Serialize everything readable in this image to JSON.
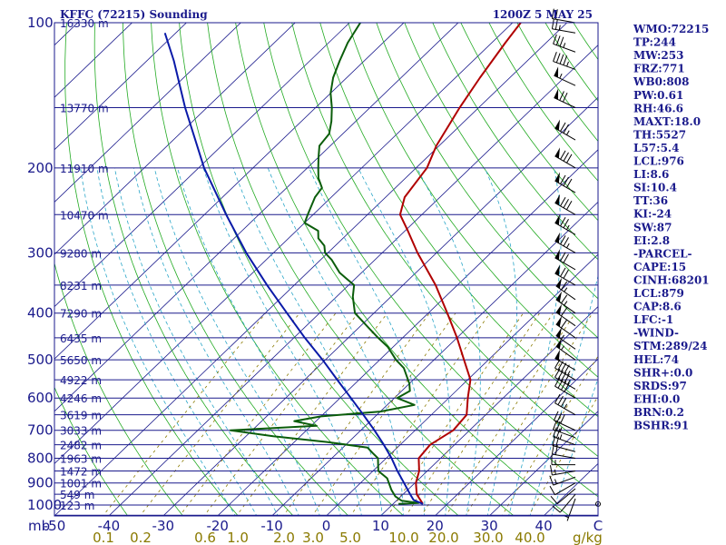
{
  "header": {
    "station_title": "KFFC (72215) Sounding",
    "valid_time": "1200Z  5 MAY 25"
  },
  "chart_data": {
    "type": "line",
    "title": "KFFC (72215) Sounding",
    "subtitle": "1200Z  5 MAY 25",
    "xlim": [
      -50,
      50
    ],
    "ylim": [
      1050,
      100
    ],
    "x_unit_label": "C",
    "pressure_levels": [
      100,
      200,
      300,
      400,
      500,
      600,
      700,
      800,
      900,
      1000
    ],
    "pressure_axis_corner_label": "mb",
    "temperature_ticks": [
      "-50",
      "-40",
      "-30",
      "-20",
      "-10",
      "0",
      "10",
      "20",
      "30",
      "40"
    ],
    "mixing_ratio_labels": [
      "0.1",
      "0.2",
      "0.6",
      "1.0",
      "2.0",
      "3.0",
      "5.0",
      "10.0",
      "20.0",
      "30.0",
      "40.0"
    ],
    "mixing_ratio_unit": "g/kg",
    "height_labels": [
      {
        "p": 100,
        "text": "16330 m"
      },
      {
        "p": 150,
        "text": "13770 m"
      },
      {
        "p": 200,
        "text": "11910 m"
      },
      {
        "p": 250,
        "text": "10470 m"
      },
      {
        "p": 300,
        "text": "9280 m"
      },
      {
        "p": 350,
        "text": "8231 m"
      },
      {
        "p": 400,
        "text": "7290 m"
      },
      {
        "p": 450,
        "text": "6435 m"
      },
      {
        "p": 500,
        "text": "5650 m"
      },
      {
        "p": 550,
        "text": "4922 m"
      },
      {
        "p": 600,
        "text": "4246 m"
      },
      {
        "p": 650,
        "text": "3619 m"
      },
      {
        "p": 700,
        "text": "3033 m"
      },
      {
        "p": 750,
        "text": "2482 m"
      },
      {
        "p": 800,
        "text": "1963 m"
      },
      {
        "p": 850,
        "text": "1472 m"
      },
      {
        "p": 900,
        "text": "1001 m"
      },
      {
        "p": 950,
        "text": "549 m"
      },
      {
        "p": 1000,
        "text": "123 m"
      }
    ],
    "series": [
      {
        "key": "temperature",
        "color": "#b00000",
        "points": [
          [
            995,
            15.5
          ],
          [
            950,
            12.5
          ],
          [
            900,
            10.2
          ],
          [
            850,
            8.5
          ],
          [
            800,
            6.0
          ],
          [
            750,
            5.5
          ],
          [
            700,
            7.0
          ],
          [
            650,
            6.5
          ],
          [
            600,
            3.5
          ],
          [
            550,
            0.5
          ],
          [
            500,
            -4.5
          ],
          [
            450,
            -10.0
          ],
          [
            400,
            -16.5
          ],
          [
            350,
            -24.0
          ],
          [
            300,
            -33.5
          ],
          [
            270,
            -39.5
          ],
          [
            250,
            -44.0
          ],
          [
            230,
            -46.5
          ],
          [
            200,
            -48.0
          ],
          [
            180,
            -50.5
          ],
          [
            150,
            -53.5
          ],
          [
            130,
            -55.5
          ],
          [
            110,
            -57.5
          ],
          [
            100,
            -58.5
          ]
        ]
      },
      {
        "key": "dewpoint",
        "color": "#0b5d0b",
        "points": [
          [
            995,
            11.0
          ],
          [
            990,
            14.5
          ],
          [
            980,
            11.0
          ],
          [
            960,
            9.0
          ],
          [
            930,
            7.0
          ],
          [
            880,
            4.0
          ],
          [
            850,
            1.0
          ],
          [
            830,
            0.0
          ],
          [
            800,
            -1.5
          ],
          [
            780,
            -3.5
          ],
          [
            760,
            -5.5
          ],
          [
            740,
            -14.0
          ],
          [
            720,
            -25.0
          ],
          [
            700,
            -34.0
          ],
          [
            685,
            -19.0
          ],
          [
            670,
            -24.0
          ],
          [
            655,
            -20.0
          ],
          [
            640,
            -10.0
          ],
          [
            620,
            -5.0
          ],
          [
            600,
            -9.5
          ],
          [
            580,
            -8.5
          ],
          [
            560,
            -10.0
          ],
          [
            520,
            -14.0
          ],
          [
            500,
            -17.0
          ],
          [
            470,
            -21.0
          ],
          [
            450,
            -24.5
          ],
          [
            430,
            -28.0
          ],
          [
            400,
            -33.5
          ],
          [
            370,
            -37.0
          ],
          [
            350,
            -39.0
          ],
          [
            330,
            -44.0
          ],
          [
            310,
            -48.0
          ],
          [
            300,
            -50.5
          ],
          [
            290,
            -52.0
          ],
          [
            280,
            -54.5
          ],
          [
            270,
            -56.0
          ],
          [
            260,
            -60.0
          ],
          [
            250,
            -61.0
          ],
          [
            230,
            -63.0
          ],
          [
            220,
            -63.5
          ],
          [
            210,
            -66.0
          ],
          [
            200,
            -68.0
          ],
          [
            190,
            -70.0
          ],
          [
            180,
            -72.0
          ],
          [
            170,
            -72.5
          ],
          [
            160,
            -74.5
          ],
          [
            150,
            -77.0
          ],
          [
            140,
            -80.0
          ],
          [
            130,
            -82.5
          ],
          [
            120,
            -84.5
          ],
          [
            110,
            -86.5
          ],
          [
            100,
            -88.0
          ]
        ]
      },
      {
        "key": "parcel",
        "color": "#0a1aa8",
        "points": [
          [
            995,
            15.5
          ],
          [
            976,
            13.0
          ],
          [
            950,
            11.3
          ],
          [
            900,
            8.0
          ],
          [
            850,
            4.5
          ],
          [
            800,
            1.0
          ],
          [
            750,
            -3.0
          ],
          [
            700,
            -7.5
          ],
          [
            650,
            -12.5
          ],
          [
            600,
            -18.0
          ],
          [
            550,
            -24.0
          ],
          [
            500,
            -30.5
          ],
          [
            450,
            -38.0
          ],
          [
            400,
            -46.0
          ],
          [
            350,
            -55.0
          ],
          [
            300,
            -65.0
          ],
          [
            250,
            -76.0
          ],
          [
            200,
            -89.0
          ],
          [
            150,
            -104.0
          ],
          [
            120,
            -115.0
          ],
          [
            105,
            -122.0
          ]
        ]
      }
    ],
    "winds": [
      {
        "p": 995,
        "dir": 270,
        "spd": 0
      },
      {
        "p": 970,
        "dir": 200,
        "spd": 5
      },
      {
        "p": 950,
        "dir": 220,
        "spd": 10
      },
      {
        "p": 925,
        "dir": 230,
        "spd": 10
      },
      {
        "p": 900,
        "dir": 240,
        "spd": 10
      },
      {
        "p": 875,
        "dir": 250,
        "spd": 15
      },
      {
        "p": 850,
        "dir": 260,
        "spd": 15
      },
      {
        "p": 825,
        "dir": 270,
        "spd": 15
      },
      {
        "p": 800,
        "dir": 280,
        "spd": 20
      },
      {
        "p": 775,
        "dir": 285,
        "spd": 20
      },
      {
        "p": 750,
        "dir": 290,
        "spd": 25
      },
      {
        "p": 725,
        "dir": 290,
        "spd": 25
      },
      {
        "p": 700,
        "dir": 295,
        "spd": 30
      },
      {
        "p": 650,
        "dir": 300,
        "spd": 35
      },
      {
        "p": 600,
        "dir": 300,
        "spd": 40
      },
      {
        "p": 575,
        "dir": 300,
        "spd": 45
      },
      {
        "p": 550,
        "dir": 300,
        "spd": 45
      },
      {
        "p": 525,
        "dir": 300,
        "spd": 50
      },
      {
        "p": 500,
        "dir": 305,
        "spd": 55
      },
      {
        "p": 475,
        "dir": 305,
        "spd": 55
      },
      {
        "p": 450,
        "dir": 305,
        "spd": 60
      },
      {
        "p": 425,
        "dir": 305,
        "spd": 60
      },
      {
        "p": 400,
        "dir": 305,
        "spd": 65
      },
      {
        "p": 375,
        "dir": 305,
        "spd": 65
      },
      {
        "p": 350,
        "dir": 300,
        "spd": 70
      },
      {
        "p": 325,
        "dir": 300,
        "spd": 70
      },
      {
        "p": 300,
        "dir": 300,
        "spd": 75
      },
      {
        "p": 275,
        "dir": 300,
        "spd": 75
      },
      {
        "p": 250,
        "dir": 300,
        "spd": 80
      },
      {
        "p": 225,
        "dir": 300,
        "spd": 80
      },
      {
        "p": 200,
        "dir": 300,
        "spd": 80
      },
      {
        "p": 175,
        "dir": 300,
        "spd": 75
      },
      {
        "p": 150,
        "dir": 295,
        "spd": 70
      },
      {
        "p": 135,
        "dir": 295,
        "spd": 55
      },
      {
        "p": 125,
        "dir": 290,
        "spd": 45
      },
      {
        "p": 115,
        "dir": 290,
        "spd": 35
      },
      {
        "p": 105,
        "dir": 280,
        "spd": 25
      },
      {
        "p": 100,
        "dir": 280,
        "spd": 20
      }
    ],
    "grid": true
  },
  "indices": [
    "WMO:72215",
    "TP:244",
    "MW:253",
    "FRZ:771",
    "WB0:808",
    "PW:0.61",
    "RH:46.6",
    "MAXT:18.0",
    "TH:5527",
    "L57:5.4",
    "LCL:976",
    "LI:8.6",
    "SI:10.4",
    "TT:36",
    "KI:-24",
    "SW:87",
    "EI:2.8",
    "-PARCEL-",
    "CAPE:15",
    "CINH:68201",
    "LCL:879",
    "CAP:8.6",
    "LFC:-1",
    "-WIND-",
    "STM:289/24",
    "HEL:74",
    "SHR+:0.0",
    "SRDS:97",
    "EHI:0.0",
    "BRN:0.2",
    "BSHR:91"
  ],
  "colors": {
    "isobar": "#1a1a8c",
    "isotherm": "#1a1a8c",
    "dry_adiabat": "#22aa22",
    "moist_adiabat": "#2aa6c8",
    "mixing_ratio": "#8a7a00",
    "wind_barb": "#000000"
  }
}
